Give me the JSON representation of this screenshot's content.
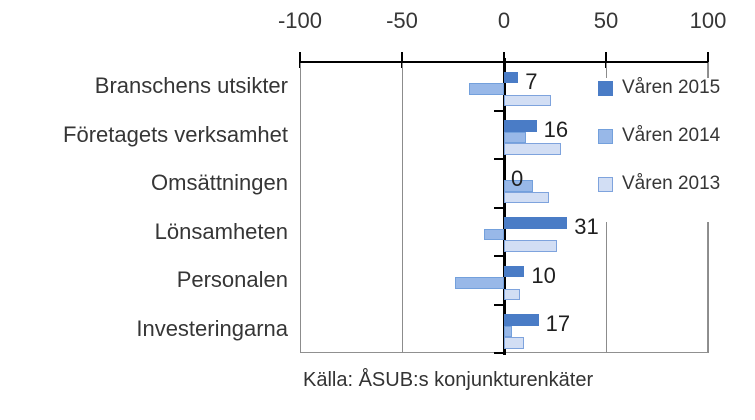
{
  "chart_data": {
    "type": "bar",
    "orientation": "horizontal",
    "title": "",
    "xlabel": "",
    "ylabel": "",
    "xlim": [
      -100,
      100
    ],
    "x_ticks": [
      "-100",
      "-50",
      "0",
      "50",
      "100"
    ],
    "x_tick_values": [
      -100,
      -50,
      0,
      50,
      100
    ],
    "gridlines": true,
    "legend_position": "inside-right",
    "categories": [
      "Branschens utsikter",
      "Företagets verksamhet",
      "Omsättningen",
      "Lönsamheten",
      "Personalen",
      "Investeringarna"
    ],
    "series": [
      {
        "name": "Våren 2015",
        "values": [
          7,
          16,
          0,
          31,
          10,
          17
        ],
        "fill": "#4a7cc6",
        "border": "#4a7cc6"
      },
      {
        "name": "Våren 2014",
        "values": [
          -17,
          11,
          14,
          -10,
          -24,
          4
        ],
        "fill": "#98b8e8",
        "border": "#73a0dc"
      },
      {
        "name": "Våren 2013",
        "values": [
          23,
          28,
          22,
          26,
          8,
          10
        ],
        "fill": "#d2def4",
        "border": "#7ea3dd"
      }
    ],
    "data_labels": {
      "series": "Våren 2015",
      "values": [
        "7",
        "16",
        "0",
        "31",
        "10",
        "17"
      ]
    },
    "source": "Källa: ÅSUB:s konjunkturenkäter"
  },
  "colors": {
    "axis_line": "#000000",
    "gridline": "#8c8c8c",
    "plot_border": "#909090",
    "text": "#363636",
    "series_2015": "#4a7cc6",
    "series_2014": "#98b8e8",
    "series_2013": "#d2def4"
  }
}
